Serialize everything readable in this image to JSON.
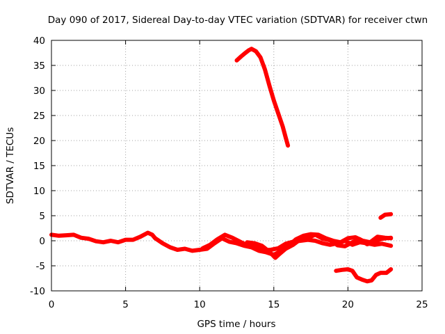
{
  "chart_data": {
    "type": "line",
    "title": "Day 090 of 2017, Sidereal Day-to-day VTEC variation (SDTVAR) for receiver ctwn",
    "xlabel": "GPS time / hours",
    "ylabel": "SDTVAR / TECUs",
    "xlim": [
      0,
      25
    ],
    "ylim": [
      -10,
      40
    ],
    "xticks": [
      0,
      5,
      10,
      15,
      20,
      25
    ],
    "yticks": [
      -10,
      -5,
      0,
      5,
      10,
      15,
      20,
      25,
      30,
      35,
      40
    ],
    "grid": true,
    "series_color": "#ff0000",
    "series": [
      {
        "name": "main-trace",
        "points": [
          [
            0.0,
            1.2
          ],
          [
            0.5,
            1.0
          ],
          [
            1.0,
            1.1
          ],
          [
            1.5,
            1.2
          ],
          [
            2.0,
            0.6
          ],
          [
            2.5,
            0.4
          ],
          [
            3.0,
            -0.1
          ],
          [
            3.5,
            -0.3
          ],
          [
            4.0,
            0.0
          ],
          [
            4.5,
            -0.3
          ],
          [
            5.0,
            0.2
          ],
          [
            5.5,
            0.2
          ],
          [
            6.0,
            0.8
          ],
          [
            6.5,
            1.6
          ],
          [
            6.8,
            1.2
          ],
          [
            7.0,
            0.5
          ],
          [
            7.5,
            -0.5
          ],
          [
            8.0,
            -1.3
          ],
          [
            8.5,
            -1.8
          ],
          [
            9.0,
            -1.6
          ],
          [
            9.5,
            -2.0
          ],
          [
            10.0,
            -1.8
          ],
          [
            10.5,
            -1.6
          ],
          [
            11.0,
            -0.5
          ],
          [
            11.5,
            0.5
          ],
          [
            12.0,
            -0.2
          ],
          [
            12.5,
            -0.5
          ],
          [
            13.0,
            -1.0
          ],
          [
            13.5,
            -1.3
          ],
          [
            14.0,
            -2.0
          ],
          [
            14.5,
            -2.3
          ],
          [
            15.0,
            -2.8
          ],
          [
            15.5,
            -2.0
          ],
          [
            16.0,
            -1.0
          ],
          [
            16.5,
            0.3
          ],
          [
            17.0,
            1.0
          ],
          [
            17.5,
            1.3
          ],
          [
            18.0,
            1.2
          ],
          [
            18.5,
            0.5
          ],
          [
            19.0,
            0.0
          ],
          [
            19.5,
            -0.3
          ],
          [
            20.0,
            0.5
          ],
          [
            20.5,
            0.7
          ],
          [
            21.0,
            0.0
          ],
          [
            21.5,
            -0.3
          ],
          [
            22.0,
            0.8
          ],
          [
            22.5,
            0.6
          ],
          [
            22.9,
            0.5
          ]
        ]
      },
      {
        "name": "lower-trace-a",
        "points": [
          [
            10.2,
            -1.5
          ],
          [
            10.7,
            -0.8
          ],
          [
            11.2,
            0.3
          ],
          [
            11.7,
            1.2
          ],
          [
            12.2,
            0.6
          ],
          [
            12.8,
            -0.3
          ],
          [
            13.3,
            -1.0
          ],
          [
            13.8,
            -1.4
          ],
          [
            14.3,
            -1.9
          ],
          [
            14.8,
            -1.8
          ],
          [
            15.3,
            -1.5
          ],
          [
            15.8,
            -0.6
          ],
          [
            16.3,
            -0.2
          ],
          [
            16.8,
            0.0
          ],
          [
            17.3,
            0.2
          ],
          [
            17.8,
            0.0
          ],
          [
            18.3,
            -0.5
          ],
          [
            18.8,
            -0.8
          ],
          [
            19.3,
            -0.5
          ],
          [
            19.8,
            0.0
          ],
          [
            20.3,
            -0.8
          ],
          [
            20.8,
            -0.3
          ],
          [
            21.3,
            -0.5
          ],
          [
            21.8,
            -0.8
          ],
          [
            22.3,
            -0.6
          ],
          [
            22.9,
            -1.0
          ]
        ]
      },
      {
        "name": "lower-trace-b",
        "points": [
          [
            13.2,
            -0.3
          ],
          [
            13.7,
            -0.5
          ],
          [
            14.2,
            -1.0
          ],
          [
            14.7,
            -2.2
          ],
          [
            15.1,
            -3.4
          ],
          [
            15.4,
            -2.6
          ],
          [
            15.8,
            -1.6
          ],
          [
            16.3,
            -0.8
          ],
          [
            16.8,
            0.3
          ],
          [
            17.3,
            0.6
          ],
          [
            17.8,
            1.2
          ],
          [
            18.3,
            0.4
          ],
          [
            18.8,
            0.1
          ],
          [
            19.3,
            -0.9
          ],
          [
            19.8,
            -1.1
          ],
          [
            20.3,
            -0.3
          ],
          [
            20.8,
            0.3
          ],
          [
            21.3,
            -0.7
          ],
          [
            21.8,
            -0.2
          ],
          [
            22.3,
            0.4
          ],
          [
            22.9,
            0.6
          ]
        ]
      },
      {
        "name": "upper-trace",
        "points": [
          [
            12.5,
            36.0
          ],
          [
            12.8,
            36.8
          ],
          [
            13.0,
            37.3
          ],
          [
            13.3,
            38.0
          ],
          [
            13.5,
            38.3
          ],
          [
            13.8,
            37.8
          ],
          [
            14.1,
            36.6
          ],
          [
            14.4,
            34.2
          ],
          [
            14.7,
            31.0
          ],
          [
            15.0,
            28.0
          ],
          [
            15.3,
            25.4
          ],
          [
            15.6,
            22.8
          ],
          [
            15.8,
            20.6
          ],
          [
            15.95,
            19.0
          ]
        ]
      },
      {
        "name": "bottom-trace",
        "points": [
          [
            19.2,
            -6.0
          ],
          [
            19.6,
            -5.8
          ],
          [
            20.0,
            -5.7
          ],
          [
            20.3,
            -6.0
          ],
          [
            20.6,
            -7.3
          ],
          [
            21.0,
            -7.8
          ],
          [
            21.3,
            -8.1
          ],
          [
            21.6,
            -7.9
          ],
          [
            21.9,
            -6.8
          ],
          [
            22.2,
            -6.4
          ],
          [
            22.6,
            -6.4
          ],
          [
            22.9,
            -5.7
          ]
        ]
      },
      {
        "name": "short-trace",
        "points": [
          [
            22.2,
            4.6
          ],
          [
            22.5,
            5.2
          ],
          [
            22.9,
            5.3
          ]
        ]
      }
    ]
  }
}
